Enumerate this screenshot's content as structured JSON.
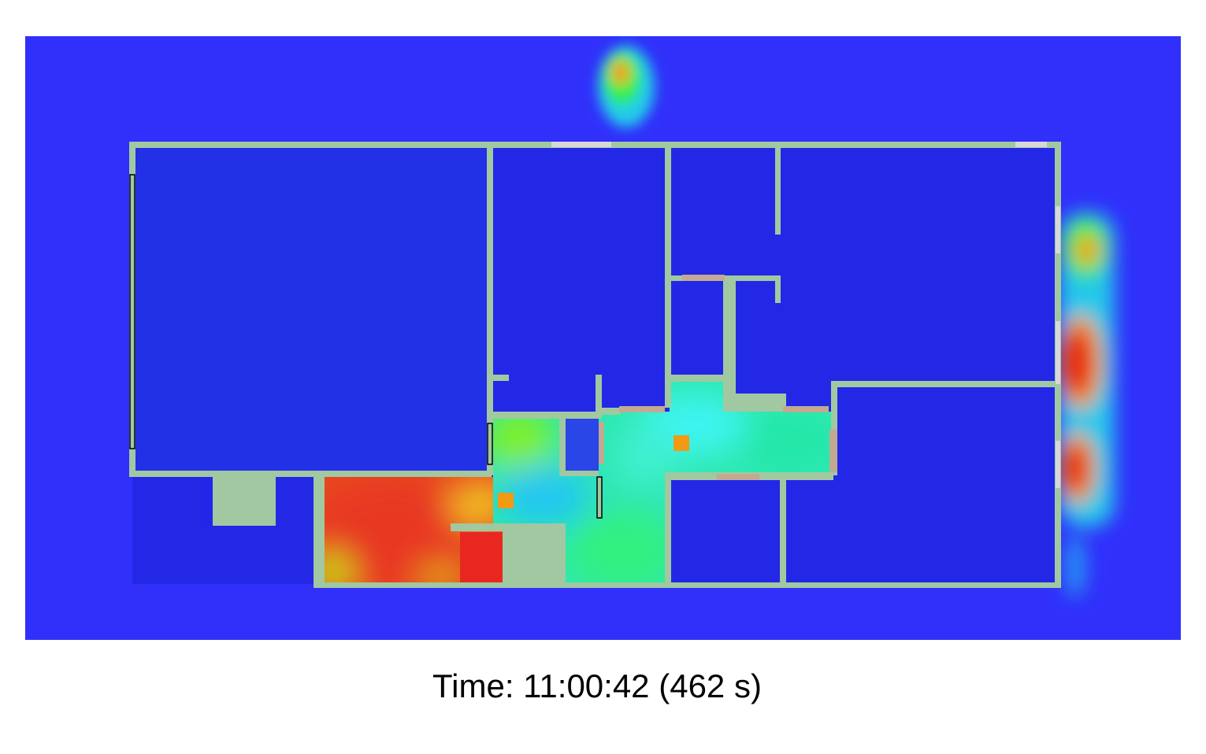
{
  "caption": {
    "prefix": "Time:",
    "clock": "11:00:42",
    "seconds_label": "(462 s)"
  },
  "colors": {
    "outside": "#3030fa",
    "room_cool": "#2228e6",
    "wall": "#a1c8a1",
    "door": "#c3a991",
    "glass": "#d8d8d8",
    "window": "#000000",
    "sprinkler": "#f29a14",
    "heat_hot": "#e82818",
    "heat_warm": "#f07018",
    "heat_mid": "#3ef0c8",
    "heat_low": "#2ef08a"
  }
}
